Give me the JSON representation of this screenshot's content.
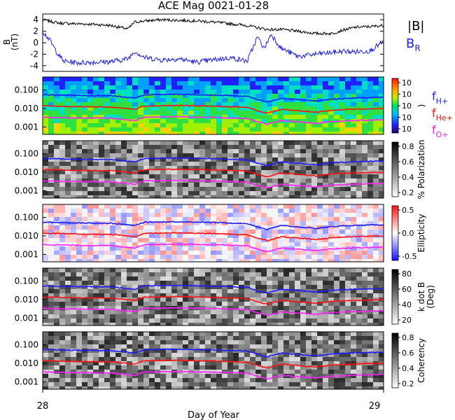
{
  "title": "ACE Mag 0021-01-28",
  "xlabel": "Day of Year",
  "x_ticks": [
    "28",
    "29"
  ],
  "legend_top": [
    {
      "label": "|B|",
      "color": "#000000"
    },
    {
      "label": "B",
      "sub": "R",
      "color": "#2020e0"
    }
  ],
  "legend_freq": [
    {
      "label": "f",
      "sub": "H+",
      "color": "#2020e0"
    },
    {
      "label": "f",
      "sub": "He+",
      "color": "#e01010"
    },
    {
      "label": "f",
      "sub": "O+",
      "color": "#e020e0"
    }
  ],
  "panel1": {
    "ylabel": "B",
    "yunit": "(nT)",
    "yticks": [
      "4",
      "2",
      "0",
      "-2",
      "-4"
    ]
  },
  "spec_yticks": [
    "0.100",
    "0.010",
    "0.001"
  ],
  "spec_panels": [
    {
      "name": "power",
      "colorbar_label": ")",
      "colorbar_ticks": [
        "10",
        "10",
        "10",
        "10",
        "10"
      ],
      "colormap": "rainbow"
    },
    {
      "name": "polarization",
      "colorbar_label": "% Polarization",
      "colorbar_ticks": [
        "0.8",
        "0.6",
        "0.4",
        "0.2"
      ],
      "colormap": "gray"
    },
    {
      "name": "ellipticity",
      "colorbar_label": "Ellipticity",
      "colorbar_ticks": [
        "0.5",
        "0.0",
        "-0.5"
      ],
      "colormap": "bwr"
    },
    {
      "name": "kdotb",
      "colorbar_label": "k dot B",
      "colorbar_label2": "(Deg)",
      "colorbar_ticks": [
        "80",
        "60",
        "40",
        "20"
      ],
      "colormap": "gray"
    },
    {
      "name": "coherency",
      "colorbar_label": "Coherency",
      "colorbar_ticks": [
        "0.8",
        "0.6",
        "0.4",
        "0.2"
      ],
      "colormap": "gray"
    }
  ],
  "chart_data": {
    "type": "line",
    "x_range": [
      28,
      29
    ],
    "panels": [
      {
        "name": "magnetic field",
        "ylim": [
          -5,
          5
        ],
        "series": [
          {
            "name": "|B|",
            "x": [
              28.0,
              28.05,
              28.1,
              28.15,
              28.2,
              28.25,
              28.27,
              28.3,
              28.35,
              28.4,
              28.45,
              28.5,
              28.55,
              28.6,
              28.63,
              28.66,
              28.7,
              28.75,
              28.8,
              28.85,
              28.88,
              28.92,
              28.96,
              29.0
            ],
            "y": [
              4.0,
              3.4,
              3.3,
              3.2,
              3.0,
              2.4,
              3.6,
              3.8,
              4.0,
              3.9,
              3.8,
              3.6,
              3.3,
              3.0,
              2.6,
              2.3,
              2.3,
              2.0,
              1.6,
              1.6,
              2.2,
              2.7,
              2.8,
              3.0
            ]
          },
          {
            "name": "B_R",
            "x": [
              28.0,
              28.02,
              28.04,
              28.06,
              28.1,
              28.15,
              28.2,
              28.25,
              28.27,
              28.3,
              28.35,
              28.4,
              28.45,
              28.5,
              28.55,
              28.6,
              28.63,
              28.65,
              28.67,
              28.7,
              28.75,
              28.8,
              28.85,
              28.88,
              28.92,
              28.96,
              29.0
            ],
            "y": [
              2.0,
              0.5,
              -1.5,
              -3.2,
              -3.5,
              -3.4,
              -3.3,
              -2.8,
              -1.5,
              -2.6,
              -3.0,
              -2.8,
              -3.4,
              -3.0,
              -2.6,
              -3.2,
              1.0,
              -1.0,
              1.5,
              -1.0,
              -2.4,
              -2.0,
              -1.7,
              -1.5,
              -1.6,
              -1.4,
              0.2
            ]
          }
        ]
      },
      {
        "name": "characteristic frequencies",
        "yscale": "log",
        "ylim": [
          0.0004,
          0.5
        ],
        "series": [
          {
            "name": "f_H+",
            "x": [
              28.0,
              28.1,
              28.2,
              28.27,
              28.3,
              28.4,
              28.5,
              28.6,
              28.63,
              28.66,
              28.7,
              28.8,
              28.85,
              28.9,
              29.0
            ],
            "y": [
              0.055,
              0.05,
              0.048,
              0.036,
              0.055,
              0.058,
              0.053,
              0.046,
              0.03,
              0.022,
              0.036,
              0.025,
              0.032,
              0.036,
              0.04
            ]
          },
          {
            "name": "f_He+",
            "x": [
              28.0,
              28.1,
              28.2,
              28.27,
              28.3,
              28.4,
              28.5,
              28.6,
              28.63,
              28.66,
              28.7,
              28.8,
              28.85,
              28.9,
              29.0
            ],
            "y": [
              0.014,
              0.0125,
              0.012,
              0.009,
              0.0137,
              0.0145,
              0.0133,
              0.0115,
              0.0075,
              0.0055,
              0.009,
              0.0063,
              0.008,
              0.009,
              0.01
            ]
          },
          {
            "name": "f_O+",
            "x": [
              28.0,
              28.1,
              28.2,
              28.27,
              28.3,
              28.4,
              28.5,
              28.6,
              28.63,
              28.66,
              28.7,
              28.8,
              28.85,
              28.9,
              29.0
            ],
            "y": [
              0.0034,
              0.0031,
              0.003,
              0.0022,
              0.0034,
              0.0036,
              0.0033,
              0.0029,
              0.0019,
              0.0014,
              0.0022,
              0.0016,
              0.002,
              0.0022,
              0.0025
            ]
          }
        ]
      }
    ]
  }
}
